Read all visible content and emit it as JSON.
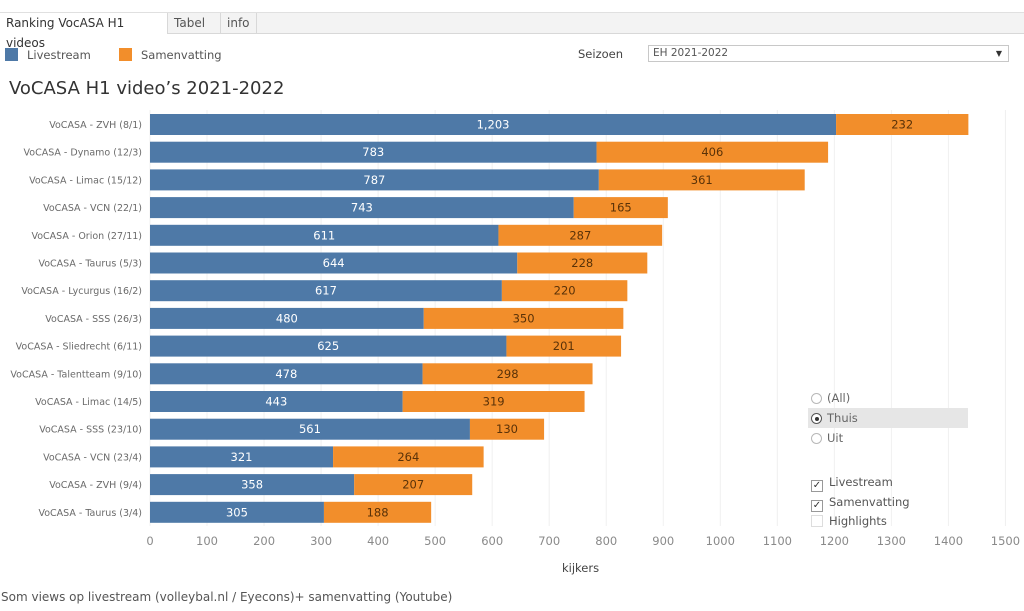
{
  "tabs": [
    {
      "label": "Ranking VocASA H1 videos",
      "active": true
    },
    {
      "label": "Tabel",
      "active": false
    },
    {
      "label": "info",
      "active": false
    }
  ],
  "legend": [
    {
      "label": "Livestream",
      "color": "#4e79a7"
    },
    {
      "label": "Samenvatting",
      "color": "#f28e2b"
    }
  ],
  "filter": {
    "seizoen_label": "Seizoen",
    "seizoen_value": "EH 2021-2022",
    "location_options": [
      {
        "label": "(All)",
        "selected": false
      },
      {
        "label": "Thuis",
        "selected": true
      },
      {
        "label": "Uit",
        "selected": false
      }
    ],
    "type_options": [
      {
        "label": "Livestream",
        "checked": true
      },
      {
        "label": "Samenvatting",
        "checked": true
      },
      {
        "label": "Highlights",
        "checked": false
      }
    ]
  },
  "footnote": "Som views op livestream (volleybal.nl / Eyecons)+ samenvatting (Youtube)",
  "chart_data": {
    "type": "bar",
    "orientation": "horizontal",
    "stacked": true,
    "title": "VoCASA H1 video’s 2021-2022",
    "xlabel": "kijkers",
    "ylabel": "",
    "xlim": [
      0,
      1500
    ],
    "xticks": [
      0,
      100,
      200,
      300,
      400,
      500,
      600,
      700,
      800,
      900,
      1000,
      1100,
      1200,
      1300,
      1400,
      1500
    ],
    "grid": true,
    "legend_position": "top-left",
    "categories": [
      "VoCASA - ZVH (8/1)",
      "VoCASA - Dynamo (12/3)",
      "VoCASA - Limac (15/12)",
      "VoCASA - VCN (22/1)",
      "VoCASA - Orion (27/11)",
      "VoCASA - Taurus (5/3)",
      "VoCASA - Lycurgus (16/2)",
      "VoCASA - SSS (26/3)",
      "VoCASA - Sliedrecht (6/11)",
      "VoCASA - Talentteam (9/10)",
      "VoCASA - Limac (14/5)",
      "VoCASA - SSS (23/10)",
      "VoCASA - VCN (23/4)",
      "VoCASA - ZVH (9/4)",
      "VoCASA - Taurus (3/4)"
    ],
    "series": [
      {
        "name": "Livestream",
        "color": "#4e79a7",
        "values": [
          1203,
          783,
          787,
          743,
          611,
          644,
          617,
          480,
          625,
          478,
          443,
          561,
          321,
          358,
          305
        ],
        "labels": [
          "1,203",
          "783",
          "787",
          "743",
          "611",
          "644",
          "617",
          "480",
          "625",
          "478",
          "443",
          "561",
          "321",
          "358",
          "305"
        ]
      },
      {
        "name": "Samenvatting",
        "color": "#f28e2b",
        "values": [
          232,
          406,
          361,
          165,
          287,
          228,
          220,
          350,
          201,
          298,
          319,
          130,
          264,
          207,
          188
        ],
        "labels": [
          "232",
          "406",
          "361",
          "165",
          "287",
          "228",
          "220",
          "350",
          "201",
          "298",
          "319",
          "130",
          "264",
          "207",
          "188"
        ]
      }
    ]
  }
}
